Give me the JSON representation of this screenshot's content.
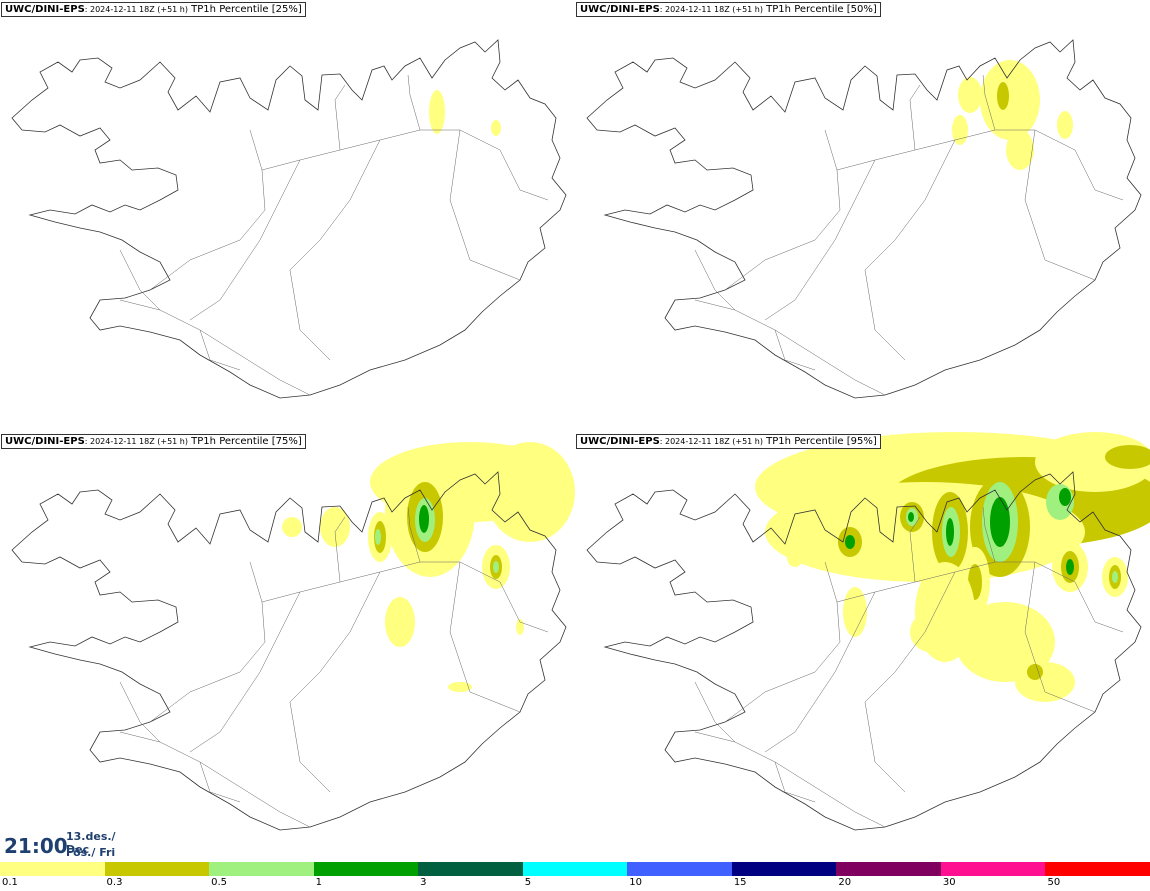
{
  "panels": [
    {
      "model": "UWC/DINI-EPS",
      "run": ": 2024-12-11 18Z (+51 h)",
      "field": "TP1h Percentile [25%]"
    },
    {
      "model": "UWC/DINI-EPS",
      "run": ": 2024-12-11 18Z (+51 h)",
      "field": "TP1h Percentile [50%]"
    },
    {
      "model": "UWC/DINI-EPS",
      "run": ": 2024-12-11 18Z (+51 h)",
      "field": "TP1h Percentile [75%]"
    },
    {
      "model": "UWC/DINI-EPS",
      "run": ": 2024-12-11 18Z (+51 h)",
      "field": "TP1h Percentile [95%]"
    }
  ],
  "valid_time": {
    "time": "21:00",
    "date": "13.des./ Dec",
    "day": "Fös./ Fri"
  },
  "legend": {
    "labels": [
      "0.1",
      "0.3",
      "0.5",
      "1",
      "3",
      "5",
      "10",
      "15",
      "20",
      "30",
      "50"
    ],
    "colors": [
      "#ffff80",
      "#c8c800",
      "#a0f080",
      "#00a000",
      "#006040",
      "#00ffff",
      "#4060ff",
      "#000080",
      "#800060",
      "#ff1090",
      "#ff0000"
    ]
  }
}
